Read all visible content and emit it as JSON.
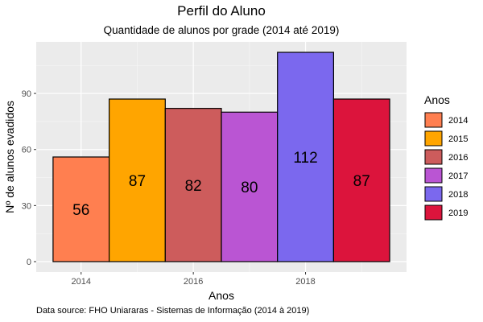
{
  "chart_data": {
    "type": "bar",
    "title": "Perfil do Aluno",
    "subtitle": "Quantidade de alunos por grade (2014 até 2019)",
    "xlabel": "Anos",
    "ylabel": "Nº de alunos evadidos",
    "caption": "Data source: FHO Uniararas - Sistemas de Informação (2014 à 2019)",
    "x": [
      2014,
      2015,
      2016,
      2017,
      2018,
      2019
    ],
    "values": [
      56,
      87,
      82,
      80,
      112,
      87
    ],
    "data_labels": [
      "56",
      "87",
      "82",
      "80",
      "112",
      "87"
    ],
    "colors": [
      "#FF7F50",
      "#FFA500",
      "#CD5C5C",
      "#BA55D3",
      "#7B68EE",
      "#DC143C"
    ],
    "bar_width_years": 1,
    "xlim": [
      2013.2,
      2019.8
    ],
    "ylim": [
      -5.6,
      117.6
    ],
    "x_ticks": [
      2014,
      2016,
      2018
    ],
    "x_tick_labels": [
      "2014",
      "2016",
      "2018"
    ],
    "y_ticks": [
      0,
      30,
      60,
      90
    ],
    "y_tick_labels": [
      "0",
      "30",
      "60",
      "90"
    ],
    "grid": true,
    "legend": {
      "title": "Anos",
      "placement": "right",
      "items": [
        "2014",
        "2015",
        "2016",
        "2017",
        "2018",
        "2019"
      ]
    }
  }
}
